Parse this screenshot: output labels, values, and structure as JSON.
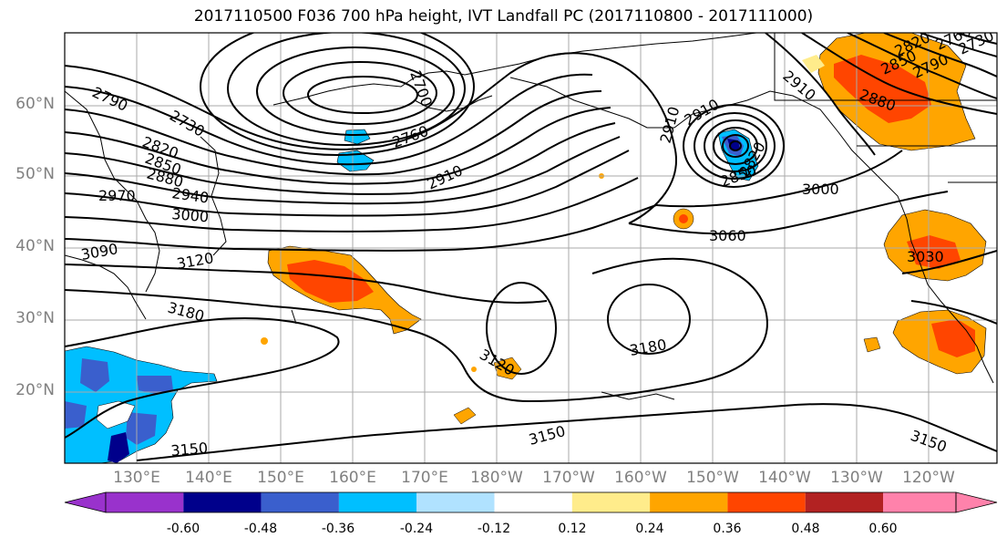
{
  "title": "2017110500 F036 700 hPa height, IVT Landfall PC (2017110800 - 2017111000)",
  "lat_labels": [
    "60°N",
    "50°N",
    "40°N",
    "30°N",
    "20°N"
  ],
  "lon_labels": [
    "130°E",
    "140°E",
    "150°E",
    "160°E",
    "170°E",
    "180°W",
    "170°W",
    "160°W",
    "150°W",
    "140°W",
    "130°W",
    "120°W"
  ],
  "contour_labels": [
    "2790",
    "2730",
    "2820",
    "2850",
    "2880",
    "2970",
    "2940",
    "3000",
    "3090",
    "3120",
    "3180",
    "3150",
    "2700",
    "2760",
    "2910",
    "3120",
    "3180",
    "3150",
    "2910",
    "2910",
    "2820",
    "2850",
    "3000",
    "3060",
    "2910",
    "2880",
    "2850",
    "2820",
    "2790",
    "2760",
    "2730",
    "3030",
    "3150"
  ],
  "colorbar": {
    "colors": [
      "#9932cc",
      "#00008b",
      "#3a5fcd",
      "#00bfff",
      "#b0e2ff",
      "#ffffff",
      "#ffffff",
      "#ffec8b",
      "#ffa500",
      "#ff4500",
      "#b22222",
      "#ff82ab"
    ],
    "tick_labels": [
      "-0.60",
      "-0.48",
      "-0.36",
      "-0.24",
      "-0.12",
      "0.12",
      "0.24",
      "0.36",
      "0.48",
      "0.60"
    ]
  }
}
